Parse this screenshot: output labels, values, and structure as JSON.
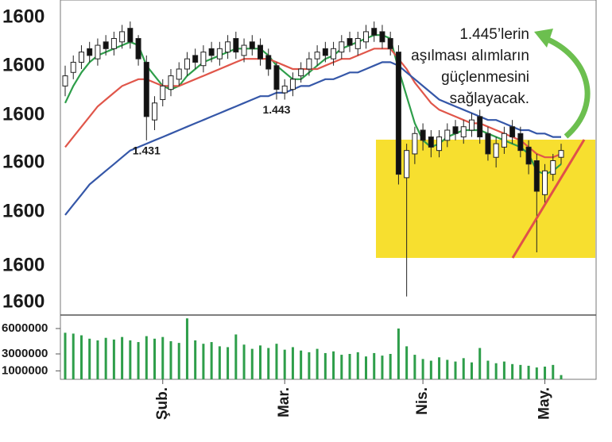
{
  "chart_data": {
    "type": "candlestick",
    "y_labels": [
      "1600",
      "1600",
      "1600",
      "1600",
      "1600",
      "1600",
      "1600"
    ],
    "ylim": [
      1.38,
      1.47
    ],
    "categories": [
      null,
      null,
      null,
      null,
      null,
      null,
      null,
      null,
      null,
      null,
      null,
      null,
      "Şub.",
      null,
      null,
      null,
      null,
      null,
      null,
      null,
      null,
      null,
      null,
      null,
      null,
      null,
      null,
      "Mar.",
      null,
      null,
      null,
      null,
      null,
      null,
      null,
      null,
      null,
      null,
      null,
      null,
      null,
      null,
      null,
      null,
      "Nis.",
      null,
      null,
      null,
      null,
      null,
      null,
      null,
      null,
      null,
      null,
      null,
      null,
      null,
      null,
      "May.",
      null,
      null
    ],
    "open": [
      1.447,
      1.451,
      1.454,
      1.458,
      1.455,
      1.46,
      1.458,
      1.46,
      1.464,
      1.461,
      1.454,
      1.437,
      1.443,
      1.446,
      1.449,
      1.452,
      1.456,
      1.453,
      1.458,
      1.455,
      1.457,
      1.461,
      1.456,
      1.46,
      1.459,
      1.456,
      1.453,
      1.445,
      1.446,
      1.45,
      1.452,
      1.455,
      1.458,
      1.455,
      1.457,
      1.461,
      1.458,
      1.46,
      1.464,
      1.463,
      1.461,
      1.457,
      1.42,
      1.427,
      1.434,
      1.432,
      1.428,
      1.431,
      1.435,
      1.432,
      1.434,
      1.438,
      1.433,
      1.426,
      1.429,
      1.435,
      1.433,
      1.429,
      1.425,
      1.415,
      1.421,
      1.426
    ],
    "high": [
      1.453,
      1.456,
      1.459,
      1.46,
      1.461,
      1.462,
      1.463,
      1.465,
      1.466,
      1.462,
      1.456,
      1.444,
      1.449,
      1.452,
      1.454,
      1.457,
      1.458,
      1.459,
      1.46,
      1.46,
      1.462,
      1.463,
      1.461,
      1.462,
      1.461,
      1.458,
      1.454,
      1.449,
      1.451,
      1.454,
      1.457,
      1.459,
      1.46,
      1.46,
      1.462,
      1.463,
      1.463,
      1.465,
      1.466,
      1.465,
      1.463,
      1.459,
      1.43,
      1.435,
      1.436,
      1.434,
      1.434,
      1.436,
      1.437,
      1.437,
      1.439,
      1.44,
      1.435,
      1.432,
      1.435,
      1.437,
      1.435,
      1.431,
      1.427,
      1.424,
      1.427,
      1.43
    ],
    "low": [
      1.444,
      1.449,
      1.452,
      1.454,
      1.453,
      1.456,
      1.456,
      1.458,
      1.458,
      1.453,
      1.431,
      1.434,
      1.441,
      1.444,
      1.447,
      1.45,
      1.452,
      1.451,
      1.454,
      1.453,
      1.455,
      1.455,
      1.454,
      1.456,
      1.453,
      1.45,
      1.443,
      1.443,
      1.444,
      1.448,
      1.45,
      1.453,
      1.454,
      1.453,
      1.455,
      1.457,
      1.456,
      1.458,
      1.46,
      1.458,
      1.456,
      1.418,
      1.385,
      1.424,
      1.428,
      1.426,
      1.426,
      1.429,
      1.431,
      1.43,
      1.432,
      1.43,
      1.425,
      1.423,
      1.427,
      1.43,
      1.426,
      1.421,
      1.398,
      1.412,
      1.419,
      1.424
    ],
    "close": [
      1.45,
      1.454,
      1.457,
      1.456,
      1.459,
      1.458,
      1.461,
      1.463,
      1.46,
      1.455,
      1.438,
      1.442,
      1.447,
      1.45,
      1.452,
      1.455,
      1.454,
      1.457,
      1.456,
      1.458,
      1.46,
      1.457,
      1.459,
      1.458,
      1.455,
      1.452,
      1.446,
      1.447,
      1.449,
      1.452,
      1.455,
      1.457,
      1.456,
      1.458,
      1.46,
      1.459,
      1.461,
      1.463,
      1.462,
      1.46,
      1.458,
      1.421,
      1.428,
      1.433,
      1.431,
      1.429,
      1.432,
      1.434,
      1.433,
      1.435,
      1.437,
      1.432,
      1.427,
      1.43,
      1.433,
      1.432,
      1.428,
      1.424,
      1.416,
      1.422,
      1.425,
      1.428
    ],
    "ma_lines": [
      {
        "color": "#2e9e4a",
        "values": [
          1.442,
          1.447,
          1.451,
          1.454,
          1.456,
          1.457,
          1.458,
          1.459,
          1.46,
          1.459,
          1.453,
          1.45,
          1.447,
          1.446,
          1.447,
          1.45,
          1.452,
          1.454,
          1.455,
          1.456,
          1.457,
          1.458,
          1.458,
          1.458,
          1.458,
          1.456,
          1.453,
          1.451,
          1.449,
          1.449,
          1.451,
          1.453,
          1.455,
          1.456,
          1.458,
          1.459,
          1.46,
          1.461,
          1.462,
          1.462,
          1.461,
          1.452,
          1.444,
          1.436,
          1.431,
          1.429,
          1.43,
          1.432,
          1.433,
          1.434,
          1.434,
          1.434,
          1.433,
          1.432,
          1.431,
          1.43,
          1.429,
          1.427,
          1.422,
          1.421,
          1.422,
          1.424
        ]
      },
      {
        "color": "#e0564a",
        "values": [
          1.429,
          1.432,
          1.435,
          1.438,
          1.441,
          1.443,
          1.445,
          1.447,
          1.448,
          1.449,
          1.449,
          1.448,
          1.447,
          1.447,
          1.447,
          1.448,
          1.449,
          1.45,
          1.451,
          1.452,
          1.453,
          1.454,
          1.455,
          1.455,
          1.455,
          1.455,
          1.454,
          1.453,
          1.452,
          1.452,
          1.452,
          1.452,
          1.453,
          1.454,
          1.455,
          1.455,
          1.456,
          1.457,
          1.458,
          1.458,
          1.458,
          1.455,
          1.452,
          1.448,
          1.445,
          1.442,
          1.44,
          1.439,
          1.438,
          1.437,
          1.436,
          1.436,
          1.435,
          1.434,
          1.433,
          1.432,
          1.431,
          1.429,
          1.427,
          1.426,
          1.426,
          1.427
        ]
      },
      {
        "color": "#3557a8",
        "values": [
          1.409,
          1.412,
          1.415,
          1.418,
          1.42,
          1.422,
          1.424,
          1.426,
          1.428,
          1.429,
          1.43,
          1.431,
          1.432,
          1.433,
          1.434,
          1.435,
          1.436,
          1.437,
          1.438,
          1.439,
          1.44,
          1.441,
          1.442,
          1.443,
          1.444,
          1.444,
          1.445,
          1.445,
          1.446,
          1.447,
          1.447,
          1.448,
          1.449,
          1.449,
          1.45,
          1.451,
          1.451,
          1.452,
          1.453,
          1.454,
          1.454,
          1.453,
          1.451,
          1.449,
          1.447,
          1.445,
          1.443,
          1.442,
          1.441,
          1.44,
          1.439,
          1.438,
          1.437,
          1.437,
          1.436,
          1.435,
          1.434,
          1.434,
          1.433,
          1.433,
          1.432,
          1.432
        ]
      }
    ],
    "volume": [
      5500000,
      5400000,
      5200000,
      4800000,
      4600000,
      4900000,
      4700000,
      5000000,
      4600000,
      4400000,
      5100000,
      4800000,
      5000000,
      4500000,
      4300000,
      7200000,
      4600000,
      4200000,
      4400000,
      3900000,
      3800000,
      5300000,
      4100000,
      3600000,
      4000000,
      3700000,
      4200000,
      3500000,
      3800000,
      3400000,
      3200000,
      3600000,
      3100000,
      3300000,
      2900000,
      3000000,
      3200000,
      2700000,
      3100000,
      2800000,
      3000000,
      6000000,
      3900000,
      2900000,
      2400000,
      2200000,
      2600000,
      2300000,
      2100000,
      2500000,
      2000000,
      3700000,
      2200000,
      1900000,
      2100000,
      1800000,
      1700000,
      1600000,
      1400000,
      1500000,
      1700000,
      500000
    ],
    "volume_color": "#2e9e4a",
    "y2lim": [
      0,
      7500000
    ],
    "y2ticks": [
      6000000,
      3000000,
      1000000
    ],
    "low_labels": [
      {
        "index": 10,
        "text": "1.431"
      },
      {
        "index": 26,
        "text": "1.443"
      }
    ],
    "callout": [
      "1.445’lerin",
      "aşılması alımların",
      "güçlenmesini",
      "sağlayacak."
    ]
  }
}
